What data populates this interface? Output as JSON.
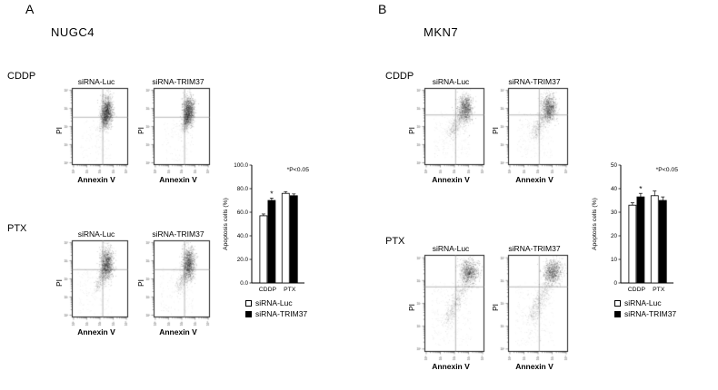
{
  "figure": {
    "background": "#ffffff"
  },
  "flow_axis_ticks": [
    "10⁰",
    "10¹",
    "10²",
    "10³",
    "10⁴"
  ],
  "panels": [
    {
      "panel_label": "A",
      "cell_line": "NUGC4",
      "rows": [
        {
          "treatment": "CDDP",
          "plots": [
            {
              "title": "siRNA-Luc",
              "xlabel": "Annexin V",
              "ylabel": "PI"
            },
            {
              "title": "siRNA-TRIM37",
              "xlabel": "Annexin V",
              "ylabel": "PI"
            }
          ]
        },
        {
          "treatment": "PTX",
          "plots": [
            {
              "title": "siRNA-Luc",
              "xlabel": "Annexin V",
              "ylabel": "PI"
            },
            {
              "title": "siRNA-TRIM37",
              "xlabel": "Annexin V",
              "ylabel": "PI"
            }
          ]
        }
      ],
      "legend": [
        {
          "label": "siRNA-Luc",
          "fill": "#ffffff"
        },
        {
          "label": "siRNA-TRIM37",
          "fill": "#000000"
        }
      ]
    },
    {
      "panel_label": "B",
      "cell_line": "MKN7",
      "rows": [
        {
          "treatment": "CDDP",
          "plots": [
            {
              "title": "siRNA-Luc",
              "xlabel": "Annexin V",
              "ylabel": "PI"
            },
            {
              "title": "siRNA-TRIM37",
              "xlabel": "Annexin V",
              "ylabel": "PI"
            }
          ]
        },
        {
          "treatment": "PTX",
          "plots": [
            {
              "title": "siRNA-Luc",
              "xlabel": "Annexin V",
              "ylabel": "PI"
            },
            {
              "title": "siRNA-TRIM37",
              "xlabel": "Annexin V",
              "ylabel": "PI"
            }
          ]
        }
      ],
      "legend": [
        {
          "label": "siRNA-Luc",
          "fill": "#ffffff"
        },
        {
          "label": "siRNA-TRIM37",
          "fill": "#000000"
        }
      ]
    }
  ],
  "chart_data": [
    {
      "type": "bar",
      "panel": "A",
      "ylabel": "Apoptosis cells (%)",
      "ylim": [
        0,
        100
      ],
      "yticks": [
        0,
        20,
        40,
        60,
        80,
        100
      ],
      "ytick_labels": [
        "0.0",
        "20.0",
        "40.0",
        "60.0",
        "80.0",
        "100.0"
      ],
      "categories": [
        "CDDP",
        "PTX"
      ],
      "series": [
        {
          "name": "siRNA-Luc",
          "fill": "#ffffff",
          "values": [
            57,
            76
          ],
          "errors": [
            1.5,
            1.5
          ]
        },
        {
          "name": "siRNA-TRIM37",
          "fill": "#000000",
          "values": [
            70,
            74
          ],
          "errors": [
            2,
            1.5
          ]
        }
      ],
      "significance": {
        "annotation": "*P<0.05",
        "starred": [
          {
            "category": "CDDP",
            "series": "siRNA-TRIM37"
          }
        ]
      },
      "legend_position": "below"
    },
    {
      "type": "bar",
      "panel": "B",
      "ylabel": "Apoptosis cells (%)",
      "ylim": [
        0,
        50
      ],
      "yticks": [
        0,
        10,
        20,
        30,
        40,
        50
      ],
      "ytick_labels": [
        "0",
        "10",
        "20",
        "30",
        "40",
        "50"
      ],
      "categories": [
        "CDDP",
        "PTX"
      ],
      "series": [
        {
          "name": "siRNA-Luc",
          "fill": "#ffffff",
          "values": [
            33,
            37
          ],
          "errors": [
            1,
            2
          ]
        },
        {
          "name": "siRNA-TRIM37",
          "fill": "#000000",
          "values": [
            36.5,
            35
          ],
          "errors": [
            1.5,
            1.5
          ]
        }
      ],
      "significance": {
        "annotation": "*P<0.05",
        "starred": [
          {
            "category": "CDDP",
            "series": "siRNA-TRIM37"
          }
        ]
      },
      "legend_position": "below"
    }
  ]
}
